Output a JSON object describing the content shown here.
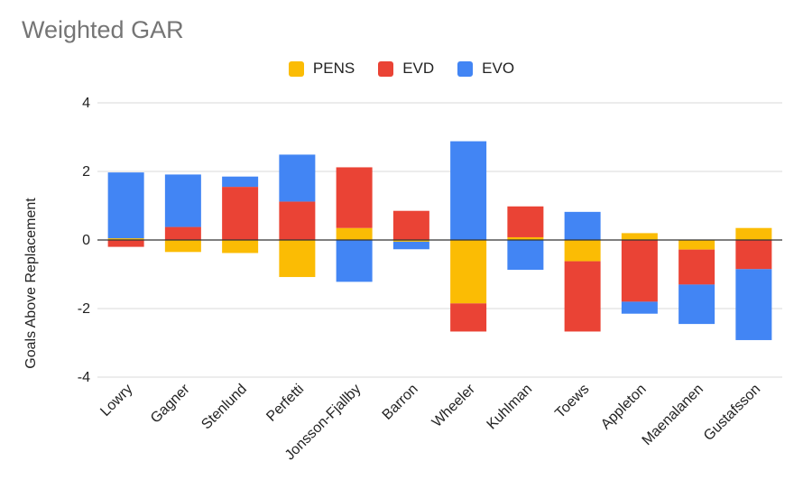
{
  "chart_data": {
    "type": "bar",
    "stacked": true,
    "title": "Weighted GAR",
    "ylabel": "Goals Above Replacement",
    "xlabel": "",
    "ylim": [
      -4,
      4
    ],
    "yticks": [
      -4,
      -2,
      0,
      2,
      4
    ],
    "grid": true,
    "legend_position": "top",
    "categories": [
      "Lowry",
      "Gagner",
      "Stenlund",
      "Perfetti",
      "Jonsson-Fjallby",
      "Barron",
      "Wheeler",
      "Kuhlman",
      "Toews",
      "Appleton",
      "Maenalanen",
      "Gustafsson"
    ],
    "series": [
      {
        "name": "PENS",
        "color": "#fbbc04",
        "values": [
          0.05,
          -0.35,
          -0.38,
          -1.08,
          0.35,
          -0.05,
          -1.85,
          0.08,
          -0.62,
          0.2,
          -0.28,
          0.35
        ]
      },
      {
        "name": "EVD",
        "color": "#ea4335",
        "values": [
          -0.2,
          0.38,
          1.55,
          1.12,
          1.77,
          0.85,
          -0.82,
          0.9,
          -2.05,
          -1.8,
          -1.02,
          -0.85
        ]
      },
      {
        "name": "EVO",
        "color": "#4285f4",
        "values": [
          1.92,
          1.53,
          0.3,
          1.37,
          -1.22,
          -0.22,
          2.88,
          -0.87,
          0.82,
          -0.35,
          -1.15,
          -2.07
        ]
      }
    ]
  }
}
